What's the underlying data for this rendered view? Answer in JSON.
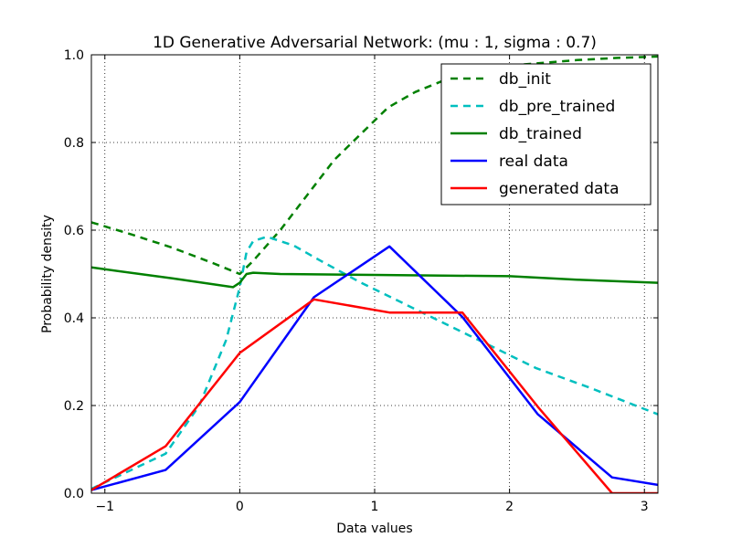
{
  "chart_data": {
    "type": "line",
    "title": "1D Generative Adversarial Network: (mu :   1, sigma : 0.7)",
    "xlabel": "Data values",
    "ylabel": "Probability density",
    "xlim": [
      -1.1,
      3.1
    ],
    "ylim": [
      0.0,
      1.0
    ],
    "x_ticks": [
      -1,
      0,
      1,
      2,
      3
    ],
    "y_ticks": [
      0.0,
      0.2,
      0.4,
      0.6,
      0.8,
      1.0
    ],
    "x_tick_labels": [
      "−1",
      "0",
      "1",
      "2",
      "3"
    ],
    "y_tick_labels": [
      "0.0",
      "0.2",
      "0.4",
      "0.6",
      "0.8",
      "1.0"
    ],
    "grid": true,
    "legend_position": "top-right",
    "series": [
      {
        "name": "db_init",
        "color": "#008000",
        "dash": "dashed",
        "points": [
          [
            -1.1,
            0.618
          ],
          [
            -0.8,
            0.59
          ],
          [
            -0.5,
            0.56
          ],
          [
            -0.2,
            0.525
          ],
          [
            0.0,
            0.5
          ],
          [
            0.1,
            0.53
          ],
          [
            0.3,
            0.6
          ],
          [
            0.5,
            0.68
          ],
          [
            0.7,
            0.76
          ],
          [
            0.9,
            0.82
          ],
          [
            1.1,
            0.88
          ],
          [
            1.3,
            0.915
          ],
          [
            1.5,
            0.94
          ],
          [
            1.8,
            0.962
          ],
          [
            2.1,
            0.978
          ],
          [
            2.5,
            0.988
          ],
          [
            2.8,
            0.993
          ],
          [
            3.1,
            0.996
          ]
        ]
      },
      {
        "name": "db_pre_trained",
        "color": "#00BFBF",
        "dash": "dashed",
        "points": [
          [
            -1.1,
            0.01
          ],
          [
            -0.55,
            0.09
          ],
          [
            -0.3,
            0.2
          ],
          [
            -0.1,
            0.35
          ],
          [
            0.0,
            0.47
          ],
          [
            0.05,
            0.55
          ],
          [
            0.1,
            0.575
          ],
          [
            0.2,
            0.585
          ],
          [
            0.4,
            0.565
          ],
          [
            0.6,
            0.53
          ],
          [
            0.9,
            0.48
          ],
          [
            1.3,
            0.42
          ],
          [
            1.7,
            0.36
          ],
          [
            2.2,
            0.285
          ],
          [
            2.6,
            0.24
          ],
          [
            3.1,
            0.18
          ]
        ]
      },
      {
        "name": "db_trained",
        "color": "#008000",
        "dash": "solid",
        "points": [
          [
            -1.1,
            0.515
          ],
          [
            -0.5,
            0.49
          ],
          [
            -0.05,
            0.47
          ],
          [
            0.0,
            0.48
          ],
          [
            0.05,
            0.5
          ],
          [
            0.1,
            0.503
          ],
          [
            0.3,
            0.5
          ],
          [
            1.0,
            0.498
          ],
          [
            2.0,
            0.495
          ],
          [
            2.5,
            0.487
          ],
          [
            3.1,
            0.48
          ]
        ]
      },
      {
        "name": "real data",
        "color": "#0000FF",
        "dash": "solid",
        "points": [
          [
            -1.1,
            0.007
          ],
          [
            -0.55,
            0.053
          ],
          [
            0.0,
            0.208
          ],
          [
            0.55,
            0.447
          ],
          [
            1.11,
            0.563
          ],
          [
            1.65,
            0.402
          ],
          [
            2.21,
            0.18
          ],
          [
            2.76,
            0.036
          ],
          [
            3.1,
            0.019
          ]
        ]
      },
      {
        "name": "generated data",
        "color": "#FF0000",
        "dash": "solid",
        "points": [
          [
            -1.1,
            0.007
          ],
          [
            -0.55,
            0.107
          ],
          [
            0.0,
            0.32
          ],
          [
            0.55,
            0.442
          ],
          [
            1.11,
            0.412
          ],
          [
            1.65,
            0.412
          ],
          [
            2.21,
            0.197
          ],
          [
            2.76,
            0.0
          ],
          [
            3.1,
            0.0
          ]
        ]
      }
    ]
  }
}
